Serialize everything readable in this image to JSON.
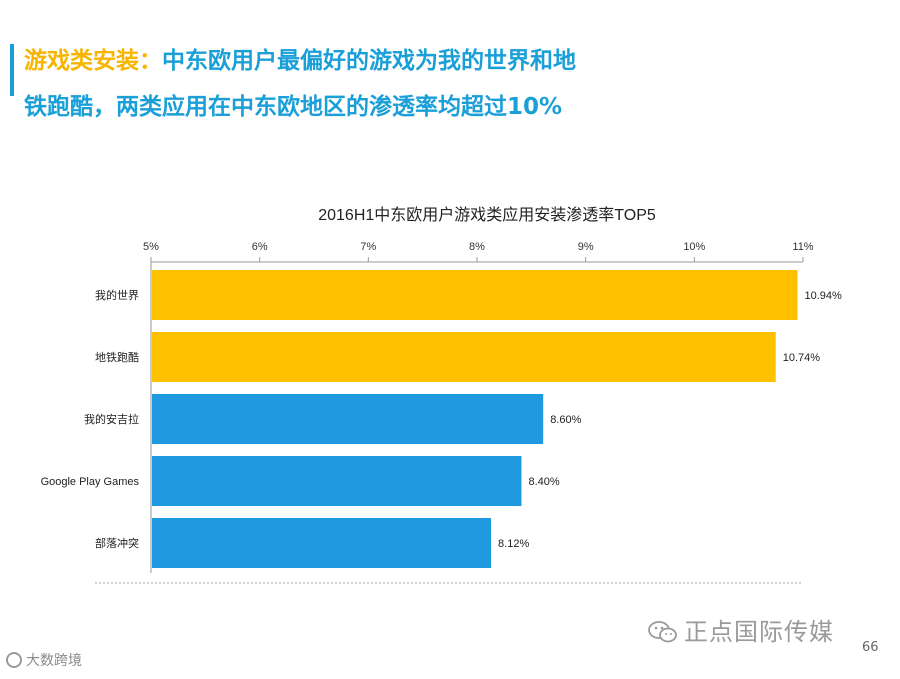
{
  "headline": {
    "accent": "游戏类安装：",
    "line1_rest": "中东欧用户最偏好的游戏为我的世界和地",
    "line2": "铁跑酷，两类应用在中东欧地区的渗透率均超过10%"
  },
  "colors": {
    "accent_blue": "#1a9fd8",
    "accent_yellow": "#f7b500",
    "bar_yellow": "#ffc000",
    "bar_blue": "#1f9ae0"
  },
  "chart_data": {
    "type": "bar",
    "orientation": "horizontal",
    "title": "2016H1中东欧用户游戏类应用安装渗透率TOP5",
    "categories": [
      "我的世界",
      "地铁跑酷",
      "我的安吉拉",
      "Google Play Games",
      "部落冲突"
    ],
    "values": [
      10.94,
      10.74,
      8.6,
      8.4,
      8.12
    ],
    "data_labels": [
      "10.94%",
      "10.74%",
      "8.60%",
      "8.40%",
      "8.12%"
    ],
    "bar_colors": [
      "#ffc000",
      "#ffc000",
      "#1f9ae0",
      "#1f9ae0",
      "#1f9ae0"
    ],
    "x_ticks": [
      5,
      6,
      7,
      8,
      9,
      10,
      11
    ],
    "x_tick_labels": [
      "5%",
      "6%",
      "7%",
      "8%",
      "9%",
      "10%",
      "11%"
    ],
    "xlim": [
      5,
      11
    ],
    "xlabel": "",
    "ylabel": "",
    "axis_position": "top",
    "grid": false
  },
  "footer": {
    "brand": "正点国际传媒",
    "page_number": "66",
    "corner_logo": "大数跨境"
  }
}
